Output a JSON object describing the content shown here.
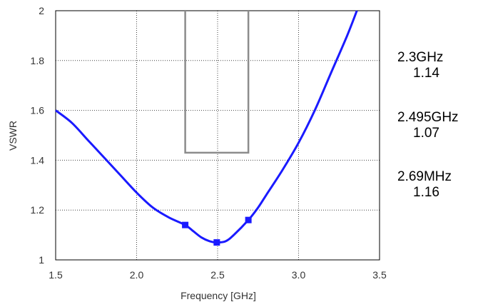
{
  "chart_data": {
    "type": "line",
    "xlabel": "Frequency [GHz]",
    "ylabel": "VSWR",
    "xlim": [
      1.5,
      3.5
    ],
    "ylim": [
      1.0,
      2.0
    ],
    "xticks": [
      1.5,
      2.0,
      2.5,
      3.0,
      3.5
    ],
    "xtick_labels": [
      "1.5",
      "2.0",
      "2.5",
      "3.0",
      "3.5"
    ],
    "yticks": [
      1.0,
      1.2,
      1.4,
      1.6,
      1.8,
      2.0
    ],
    "ytick_labels": [
      "1",
      "1.2",
      "1.4",
      "1.6",
      "1.8",
      "2"
    ],
    "grid": true,
    "series": [
      {
        "color": "#1a1aff",
        "x": [
          1.5,
          1.6,
          1.7,
          1.8,
          1.9,
          2.0,
          2.1,
          2.2,
          2.3,
          2.35,
          2.4,
          2.45,
          2.495,
          2.55,
          2.6,
          2.69,
          2.75,
          2.8,
          2.9,
          3.0,
          3.1,
          3.2,
          3.3,
          3.36
        ],
        "y": [
          1.6,
          1.55,
          1.48,
          1.41,
          1.34,
          1.27,
          1.21,
          1.17,
          1.14,
          1.115,
          1.09,
          1.075,
          1.07,
          1.075,
          1.1,
          1.16,
          1.21,
          1.26,
          1.36,
          1.47,
          1.6,
          1.75,
          1.9,
          2.0
        ]
      }
    ],
    "markers": [
      {
        "x": 2.3,
        "y": 1.14
      },
      {
        "x": 2.495,
        "y": 1.07
      },
      {
        "x": 2.69,
        "y": 1.16
      }
    ],
    "spec_mask": {
      "x_start": 2.3,
      "x_end": 2.69,
      "y_top": 2.0,
      "y_bottom": 1.43,
      "color": "#8c8c8c"
    },
    "annotations": [
      {
        "freq": "2.3GHz",
        "value": "1.14"
      },
      {
        "freq": "2.495GHz",
        "value": "1.07"
      },
      {
        "freq": "2.69MHz",
        "value": "1.16"
      }
    ]
  }
}
